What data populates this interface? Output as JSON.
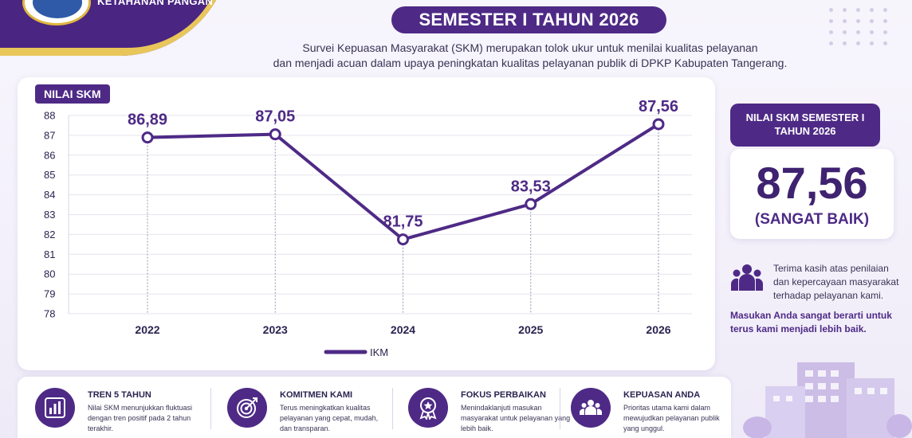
{
  "header": {
    "agency": "KETAHANAN PANGAN",
    "title": "SEMESTER I TAHUN 2026",
    "intro_line1": "Survei Kepuasan Masyarakat (SKM) merupakan tolok ukur untuk menilai kualitas pelayanan",
    "intro_line2": "dan menjadi acuan dalam upaya peningkatan kualitas pelayanan publik di DPKP Kabupaten Tangerang."
  },
  "chart_data": {
    "type": "line",
    "title": "NILAI SKM",
    "categories": [
      "2022",
      "2023",
      "2024",
      "2025",
      "2026"
    ],
    "series": [
      {
        "name": "IKM",
        "values": [
          86.89,
          87.05,
          81.75,
          83.53,
          87.56
        ]
      }
    ],
    "data_labels": [
      "86,89",
      "87,05",
      "81,75",
      "83,53",
      "87,56"
    ],
    "ylim": [
      78,
      88
    ],
    "yticks": [
      78,
      79,
      80,
      81,
      82,
      83,
      84,
      85,
      86,
      87,
      88
    ],
    "grid": true,
    "legend_position": "bottom-center",
    "color": "#4e2a86"
  },
  "score": {
    "heading": "NILAI SKM SEMESTER I TAHUN 2026",
    "value": "87,56",
    "category": "(SANGAT BAIK)"
  },
  "thanks": {
    "icon": "people-icon",
    "text": "Terima kasih atas penilaian dan kepercayaan masyarakat terhadap pelayanan kami."
  },
  "feedback": "Masukan Anda sangat berarti untuk terus kami menjadi lebih baik.",
  "info_items": [
    {
      "icon": "bar-chart-icon",
      "title": "TREN 5 TAHUN",
      "desc": "Nilai SKM menunjukkan fluktuasi dengan tren positif pada 2 tahun terakhir."
    },
    {
      "icon": "target-icon",
      "title": "KOMITMEN KAMI",
      "desc": "Terus meningkatkan kualitas pelayanan yang cepat, mudah, dan transparan."
    },
    {
      "icon": "award-icon",
      "title": "FOKUS PERBAIKAN",
      "desc": "Menindaklanjuti masukan masyarakat untuk pelayanan yang lebih baik."
    },
    {
      "icon": "group-icon",
      "title": "KEPUASAN ANDA",
      "desc": "Prioritas utama kami dalam mewujudkan pelayanan publik yang unggul."
    }
  ]
}
